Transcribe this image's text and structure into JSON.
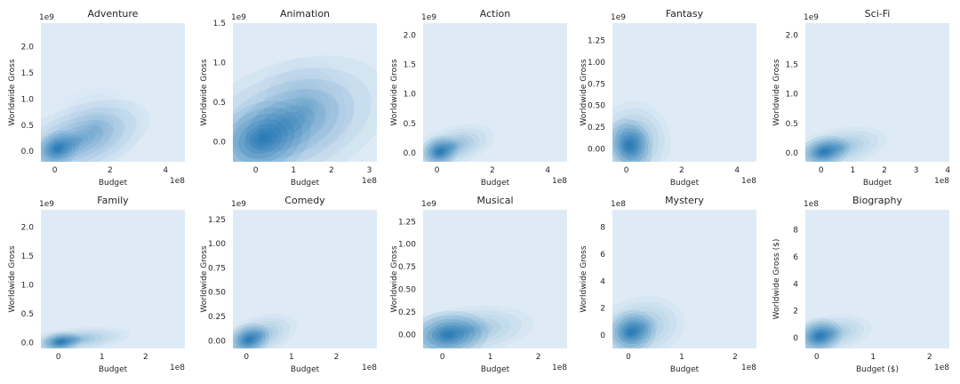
{
  "figure": {
    "panel_bg": "#deebf6",
    "density_color": "#1f77b4"
  },
  "chart_data": [
    {
      "type": "area",
      "kind": "kde-2d",
      "title": "Adventure",
      "xlabel": "Budget",
      "ylabel": "Worldwide Gross",
      "xlim": [
        -50000000.0,
        470000000.0
      ],
      "ylim": [
        -200000000.0,
        2450000000.0
      ],
      "xticks": [
        0,
        2,
        4
      ],
      "yticks": [
        0.0,
        0.5,
        1.0,
        1.5,
        2.0
      ],
      "x_offset_label": "1e8",
      "y_offset_label": "1e9",
      "tick_decimals": 1,
      "density": [
        {
          "x": 10000000.0,
          "y": 50000000.0,
          "sx": 12000000.0,
          "sy": 50000000.0,
          "rot": 0.5,
          "w": 1.0
        },
        {
          "x": 70000000.0,
          "y": 180000000.0,
          "sx": 45000000.0,
          "sy": 100000000.0,
          "rot": 0.6,
          "w": 0.45
        },
        {
          "x": 150000000.0,
          "y": 450000000.0,
          "sx": 25000000.0,
          "sy": 120000000.0,
          "rot": 0.4,
          "w": 0.15
        }
      ]
    },
    {
      "type": "area",
      "kind": "kde-2d",
      "title": "Animation",
      "xlabel": "Budget",
      "ylabel": "Worldwide Gross",
      "xlim": [
        -60000000.0,
        320000000.0
      ],
      "ylim": [
        -250000000.0,
        1500000000.0
      ],
      "xticks": [
        0,
        1,
        2,
        3
      ],
      "yticks": [
        0.0,
        0.5,
        1.0,
        1.5
      ],
      "x_offset_label": "1e8",
      "y_offset_label": "1e9",
      "tick_decimals": 1,
      "density": [
        {
          "x": 20000000.0,
          "y": 40000000.0,
          "sx": 20000000.0,
          "sy": 70000000.0,
          "rot": 0.5,
          "w": 1.0
        },
        {
          "x": 80000000.0,
          "y": 220000000.0,
          "sx": 45000000.0,
          "sy": 120000000.0,
          "rot": 0.55,
          "w": 0.5
        },
        {
          "x": 130000000.0,
          "y": 420000000.0,
          "sx": 20000000.0,
          "sy": 100000000.0,
          "rot": 0.4,
          "w": 0.2
        }
      ]
    },
    {
      "type": "area",
      "kind": "kde-2d",
      "title": "Action",
      "xlabel": "Budget",
      "ylabel": "Worldwide Gross",
      "xlim": [
        -50000000.0,
        470000000.0
      ],
      "ylim": [
        -150000000.0,
        2200000000.0
      ],
      "xticks": [
        0,
        2,
        4
      ],
      "yticks": [
        0.0,
        0.5,
        1.0,
        1.5,
        2.0
      ],
      "x_offset_label": "1e8",
      "y_offset_label": "1e9",
      "tick_decimals": 1,
      "density": [
        {
          "x": 10000000.0,
          "y": 20000000.0,
          "sx": 10000000.0,
          "sy": 40000000.0,
          "rot": 0.4,
          "w": 1.0
        },
        {
          "x": 50000000.0,
          "y": 100000000.0,
          "sx": 25000000.0,
          "sy": 50000000.0,
          "rot": 0.5,
          "w": 0.4
        }
      ]
    },
    {
      "type": "area",
      "kind": "kde-2d",
      "title": "Fantasy",
      "xlabel": "Budget",
      "ylabel": "Worldwide Gross",
      "xlim": [
        -50000000.0,
        470000000.0
      ],
      "ylim": [
        -150000000.0,
        1450000000.0
      ],
      "xticks": [
        0,
        2,
        4
      ],
      "yticks": [
        0.0,
        0.25,
        0.5,
        0.75,
        1.0,
        1.25
      ],
      "x_offset_label": "1e8",
      "y_offset_label": "1e9",
      "tick_decimals": 2,
      "density": [
        {
          "x": 10000000.0,
          "y": 30000000.0,
          "sx": 12000000.0,
          "sy": 50000000.0,
          "rot": 0.35,
          "w": 1.0
        },
        {
          "x": 30000000.0,
          "y": 100000000.0,
          "sx": 20000000.0,
          "sy": 70000000.0,
          "rot": 0.3,
          "w": 0.4
        }
      ]
    },
    {
      "type": "area",
      "kind": "kde-2d",
      "title": "Sci-Fi",
      "xlabel": "Budget",
      "ylabel": "Worldwide Gross",
      "xlim": [
        -50000000.0,
        405000000.0
      ],
      "ylim": [
        -150000000.0,
        2200000000.0
      ],
      "xticks": [
        0,
        1,
        2,
        3,
        4
      ],
      "yticks": [
        0.0,
        0.5,
        1.0,
        1.5,
        2.0
      ],
      "x_offset_label": "1e8",
      "y_offset_label": "1e9",
      "tick_decimals": 1,
      "density": [
        {
          "x": 10000000.0,
          "y": 20000000.0,
          "sx": 12000000.0,
          "sy": 40000000.0,
          "rot": 0.3,
          "w": 1.0
        },
        {
          "x": 50000000.0,
          "y": 80000000.0,
          "sx": 25000000.0,
          "sy": 50000000.0,
          "rot": 0.35,
          "w": 0.35
        }
      ]
    },
    {
      "type": "area",
      "kind": "kde-2d",
      "title": "Family",
      "xlabel": "Budget",
      "ylabel": "Worldwide Gross",
      "xlim": [
        -40000000.0,
        290000000.0
      ],
      "ylim": [
        -100000000.0,
        2300000000.0
      ],
      "xticks": [
        0,
        1,
        2
      ],
      "yticks": [
        0.0,
        0.5,
        1.0,
        1.5,
        2.0
      ],
      "x_offset_label": "1e8",
      "y_offset_label": "1e9",
      "tick_decimals": 1,
      "density": [
        {
          "x": 5000000.0,
          "y": 10000000.0,
          "sx": 7000000.0,
          "sy": 25000000.0,
          "rot": 0.2,
          "w": 1.0
        },
        {
          "x": 35000000.0,
          "y": 50000000.0,
          "sx": 20000000.0,
          "sy": 30000000.0,
          "rot": 0.2,
          "w": 0.35
        }
      ]
    },
    {
      "type": "area",
      "kind": "kde-2d",
      "title": "Comedy",
      "xlabel": "Budget",
      "ylabel": "Worldwide Gross",
      "xlim": [
        -30000000.0,
        290000000.0
      ],
      "ylim": [
        -80000000.0,
        1350000000.0
      ],
      "xticks": [
        0,
        1,
        2
      ],
      "yticks": [
        0.0,
        0.25,
        0.5,
        0.75,
        1.0,
        1.25
      ],
      "x_offset_label": "1e8",
      "y_offset_label": "1e9",
      "tick_decimals": 2,
      "density": [
        {
          "x": 5000000.0,
          "y": 10000000.0,
          "sx": 7000000.0,
          "sy": 25000000.0,
          "rot": 0.4,
          "w": 1.0
        },
        {
          "x": 25000000.0,
          "y": 50000000.0,
          "sx": 14000000.0,
          "sy": 30000000.0,
          "rot": 0.5,
          "w": 0.35
        }
      ]
    },
    {
      "type": "area",
      "kind": "kde-2d",
      "title": "Musical",
      "xlabel": "Budget",
      "ylabel": "Worldwide Gross",
      "xlim": [
        -40000000.0,
        260000000.0
      ],
      "ylim": [
        -150000000.0,
        1380000000.0
      ],
      "xticks": [
        0,
        1,
        2
      ],
      "yticks": [
        0.0,
        0.25,
        0.5,
        0.75,
        1.0,
        1.25
      ],
      "x_offset_label": "1e8",
      "y_offset_label": "1e9",
      "tick_decimals": 2,
      "density": [
        {
          "x": 12000000.0,
          "y": 0.0,
          "sx": 13000000.0,
          "sy": 40000000.0,
          "rot": 0.15,
          "w": 1.0
        },
        {
          "x": 50000000.0,
          "y": 50000000.0,
          "sx": 22000000.0,
          "sy": 40000000.0,
          "rot": 0.2,
          "w": 0.35
        }
      ]
    },
    {
      "type": "area",
      "kind": "kde-2d",
      "title": "Mystery",
      "xlabel": "Budget",
      "ylabel": "Worldwide Gross",
      "xlim": [
        -30000000.0,
        240000000.0
      ],
      "ylim": [
        -100000000.0,
        930000000.0
      ],
      "xticks": [
        0,
        1,
        2
      ],
      "yticks": [
        0,
        2,
        4,
        6,
        8
      ],
      "x_offset_label": "1e8",
      "y_offset_label": "1e8",
      "tick_decimals": 0,
      "density": [
        {
          "x": 5000000.0,
          "y": 20000000.0,
          "sx": 7000000.0,
          "sy": 25000000.0,
          "rot": 0.3,
          "w": 1.0
        },
        {
          "x": 22000000.0,
          "y": 55000000.0,
          "sx": 13000000.0,
          "sy": 35000000.0,
          "rot": 0.3,
          "w": 0.35
        }
      ]
    },
    {
      "type": "area",
      "kind": "kde-2d",
      "title": "Biography",
      "xlabel": "Budget ($)",
      "ylabel": "Worldwide Gross ($)",
      "xlim": [
        -20000000.0,
        235000000.0
      ],
      "ylim": [
        -80000000.0,
        950000000.0
      ],
      "xticks": [
        0,
        1,
        2
      ],
      "yticks": [
        0,
        2,
        4,
        6,
        8
      ],
      "x_offset_label": "1e8",
      "y_offset_label": "1e8",
      "tick_decimals": 0,
      "density": [
        {
          "x": 5000000.0,
          "y": 10000000.0,
          "sx": 6000000.0,
          "sy": 20000000.0,
          "rot": 0.3,
          "w": 1.0
        },
        {
          "x": 20000000.0,
          "y": 30000000.0,
          "sx": 12000000.0,
          "sy": 20000000.0,
          "rot": 0.25,
          "w": 0.35
        }
      ]
    }
  ]
}
